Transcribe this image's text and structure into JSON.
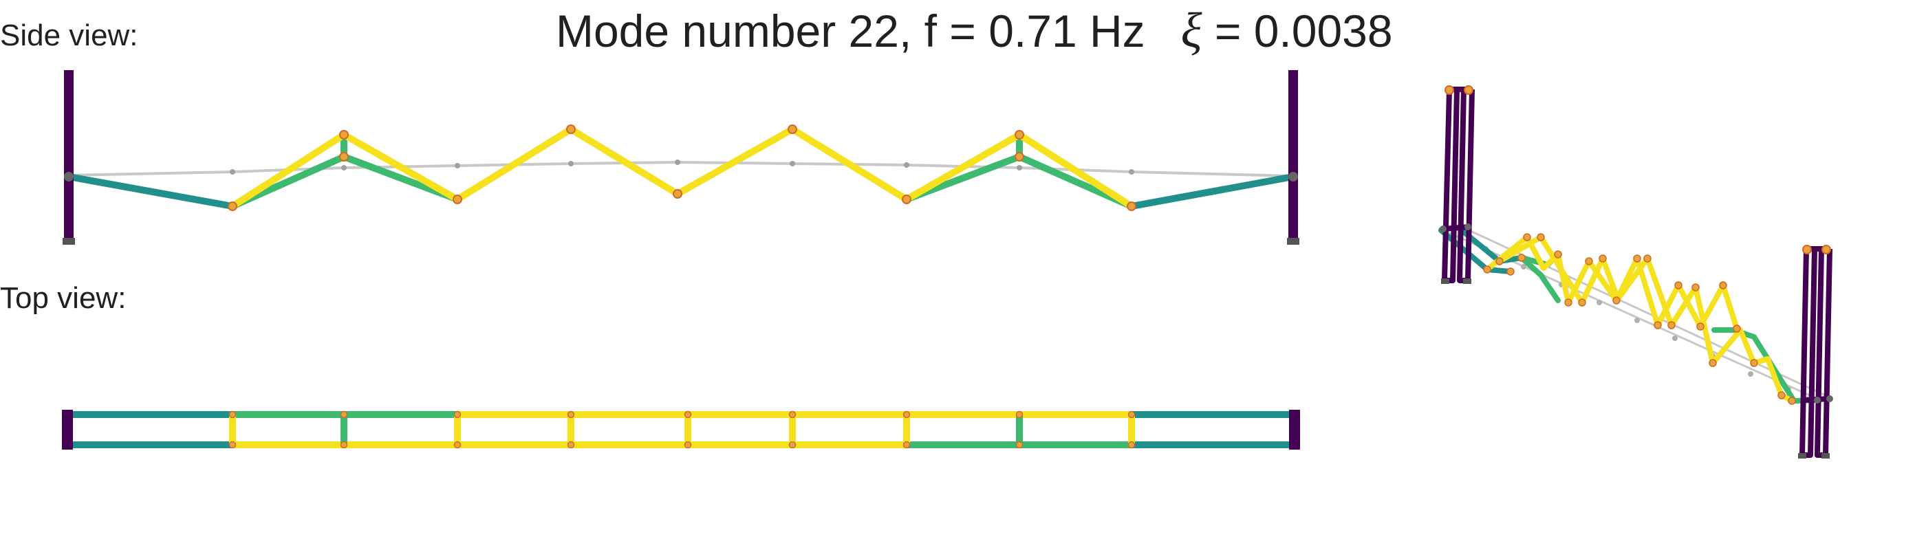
{
  "title": {
    "main": "Mode number 22, f = 0.71 Hz",
    "xi_symbol": "ξ",
    "xi_value": " = 0.0038"
  },
  "labels": {
    "side_view": "Side view:",
    "top_view": "Top view:"
  },
  "colors": {
    "background": "#ffffff",
    "text": "#231f20",
    "tower": "#440154",
    "undeformed": "#c8c8c8",
    "undeformed_node": "#a0a0a0",
    "teal": "#21908c",
    "green": "#3dba6f",
    "yellow": "#f5e11e",
    "node": "#e8a33a",
    "node_edge": "#d06a2a"
  }
}
